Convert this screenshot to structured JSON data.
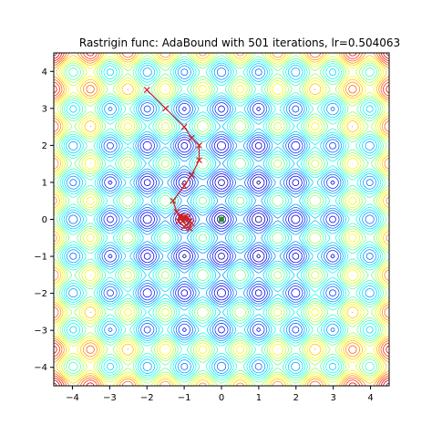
{
  "chart_data": {
    "type": "contour",
    "title": "Rastrigin func: AdaBound with 501 iterations, lr=0.504063",
    "xlabel": "",
    "ylabel": "",
    "xlim": [
      -4.5,
      4.5
    ],
    "ylim": [
      -4.5,
      4.5
    ],
    "xticks": [
      -4,
      -3,
      -2,
      -1,
      0,
      1,
      2,
      3,
      4
    ],
    "yticks": [
      -4,
      -3,
      -2,
      -1,
      0,
      1,
      2,
      3,
      4
    ],
    "xtick_labels": [
      "−4",
      "−3",
      "−2",
      "−1",
      "0",
      "1",
      "2",
      "3",
      "4"
    ],
    "ytick_labels": [
      "−4",
      "−3",
      "−2",
      "−1",
      "0",
      "1",
      "2",
      "3",
      "4"
    ],
    "function": "rastrigin",
    "colormap": "jet",
    "grid": false,
    "global_minimum": {
      "x": 0,
      "y": 0,
      "marker": "x",
      "color": "#2e8b2e"
    },
    "path": {
      "color": "#cc2222",
      "marker": "x",
      "points": [
        [
          -2.0,
          3.5
        ],
        [
          -1.5,
          3.0
        ],
        [
          -1.0,
          2.5
        ],
        [
          -0.8,
          2.2
        ],
        [
          -0.6,
          2.0
        ],
        [
          -0.6,
          1.6
        ],
        [
          -0.8,
          1.2
        ],
        [
          -1.0,
          0.9
        ],
        [
          -1.3,
          0.5
        ],
        [
          -1.2,
          0.2
        ],
        [
          -1.1,
          0.05
        ],
        [
          -0.9,
          0.05
        ],
        [
          -0.8,
          -0.1
        ],
        [
          -0.85,
          -0.25
        ],
        [
          -1.0,
          -0.2
        ],
        [
          -1.15,
          -0.05
        ],
        [
          -1.1,
          0.1
        ],
        [
          -0.95,
          0.08
        ],
        [
          -0.85,
          -0.05
        ],
        [
          -0.95,
          -0.15
        ],
        [
          -1.05,
          -0.05
        ],
        [
          -1.0,
          0.05
        ],
        [
          -0.95,
          0.0
        ],
        [
          -0.98,
          0.0
        ]
      ]
    }
  }
}
